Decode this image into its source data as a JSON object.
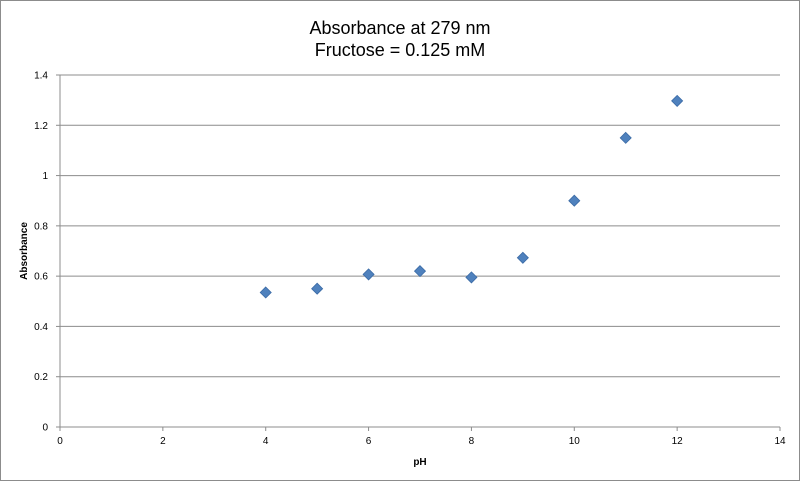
{
  "chart_data": {
    "type": "scatter",
    "title": "Absorbance at 279 nm",
    "subtitle": "Fructose = 0.125 mM",
    "xlabel": "pH",
    "ylabel": "Absorbance",
    "xlim": [
      0,
      14
    ],
    "ylim": [
      0,
      1.4
    ],
    "xticks": [
      0,
      2,
      4,
      6,
      8,
      10,
      12,
      14
    ],
    "yticks": [
      0,
      0.2,
      0.4,
      0.6,
      0.8,
      1,
      1.2,
      1.4
    ],
    "grid": "horizontal",
    "legend": "none",
    "marker_color": "#4f81bd",
    "marker": "diamond",
    "x": [
      4,
      5,
      6,
      7,
      8,
      9,
      10,
      11,
      12
    ],
    "y": [
      0.535,
      0.55,
      0.607,
      0.62,
      0.595,
      0.673,
      0.9,
      1.15,
      1.297
    ]
  }
}
